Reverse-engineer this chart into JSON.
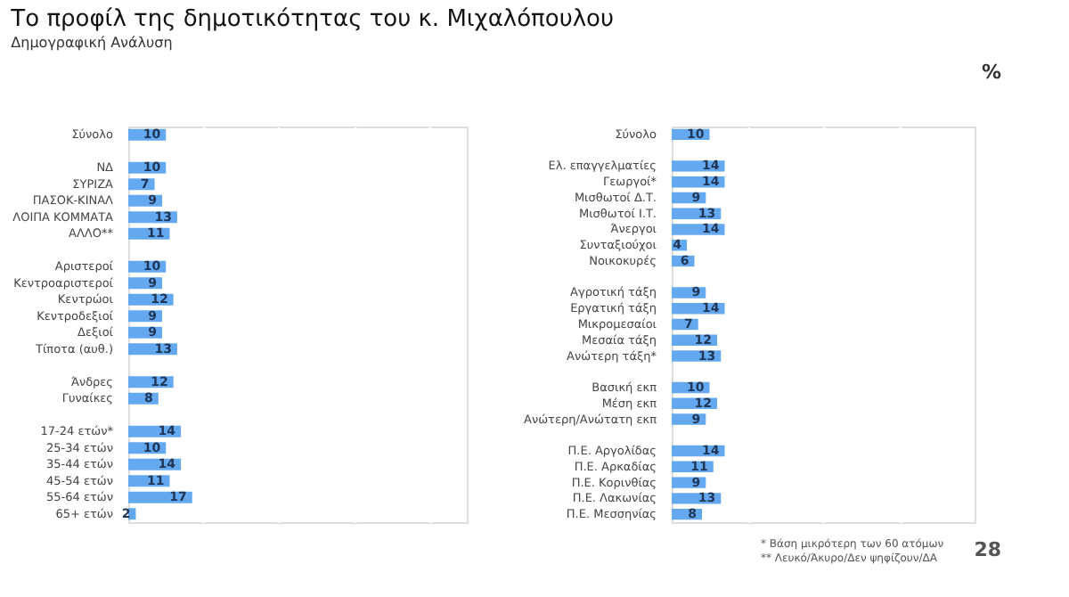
{
  "chart_data": [
    {
      "type": "bar",
      "orientation": "horizontal",
      "title": "Το προφίλ της δημοτικότητας του κ. Μιχαλόπουλου",
      "subtitle": "Δημογραφική Ανάλυση",
      "categories": [
        "Σύνολο",
        null,
        "ΝΔ",
        "ΣΥΡΙΖΑ",
        "ΠΑΣΟΚ-ΚΙΝΑΛ",
        "ΛΟΙΠΑ ΚΟΜΜΑΤΑ",
        "ΑΛΛΟ**",
        null,
        "Αριστεροί",
        "Κεντροαριστεροί",
        "Κεντρώοι",
        "Κεντροδεξιοί",
        "Δεξιοί",
        "Τίποτα (αυθ.)",
        null,
        "Άνδρες",
        "Γυναίκες",
        null,
        "17-24 ετών*",
        "25-34 ετών",
        "35-44 ετών",
        "45-54 ετών",
        "55-64 ετών",
        "65+ ετών"
      ],
      "values": [
        10,
        null,
        10,
        7,
        9,
        13,
        11,
        null,
        10,
        9,
        12,
        9,
        9,
        13,
        null,
        12,
        8,
        null,
        14,
        10,
        14,
        11,
        17,
        2
      ],
      "color": "#64a8f0",
      "data_labels": true,
      "xlim": [
        0,
        90
      ],
      "xticks": [
        {
          "value": 20,
          "label": null
        },
        {
          "value": 40,
          "label": null
        },
        {
          "value": 60,
          "label": null
        },
        {
          "value": 80,
          "label": null
        }
      ],
      "grid": "x",
      "tick_labels": "y"
    },
    {
      "type": "bar",
      "orientation": "horizontal",
      "categories": [
        "Σύνολο",
        null,
        "Ελ. επαγγελματίες",
        "Γεωργοί*",
        "Μισθωτοί Δ.Τ.",
        "Μισθωτοί Ι.Τ.",
        "Άνεργοι",
        "Συνταξιούχοι",
        "Νοικοκυρές",
        null,
        "Αγροτική τάξη",
        "Εργατική τάξη",
        "Μικρομεσαίοι",
        "Μεσαία τάξη",
        "Ανώτερη τάξη*",
        null,
        "Βασική εκπ",
        "Μέση εκπ",
        "Ανώτερη/Ανώτατη εκπ",
        null,
        "Π.Ε. Αργολίδας",
        "Π.Ε. Αρκαδίας",
        "Π.Ε. Κορινθίας",
        "Π.Ε. Λακωνίας",
        "Π.Ε. Μεσσηνίας"
      ],
      "values": [
        10,
        null,
        14,
        14,
        9,
        13,
        14,
        4,
        6,
        null,
        9,
        14,
        7,
        12,
        13,
        null,
        10,
        12,
        9,
        null,
        14,
        11,
        9,
        13,
        8
      ],
      "color": "#64a8f0",
      "data_labels": true,
      "xlim": [
        0,
        80
      ],
      "xticks": [
        {
          "value": 20,
          "label": null
        },
        {
          "value": 40,
          "label": null
        },
        {
          "value": 60,
          "label": null
        }
      ],
      "grid": "x",
      "tick_labels": "y",
      "annotations": [
        "%",
        "* Βάση μικρότερη των 60 ατόμων",
        "** Λευκό/Άκυρο/Δεν ψηφίζουν/ΔΑ",
        "28"
      ]
    }
  ]
}
